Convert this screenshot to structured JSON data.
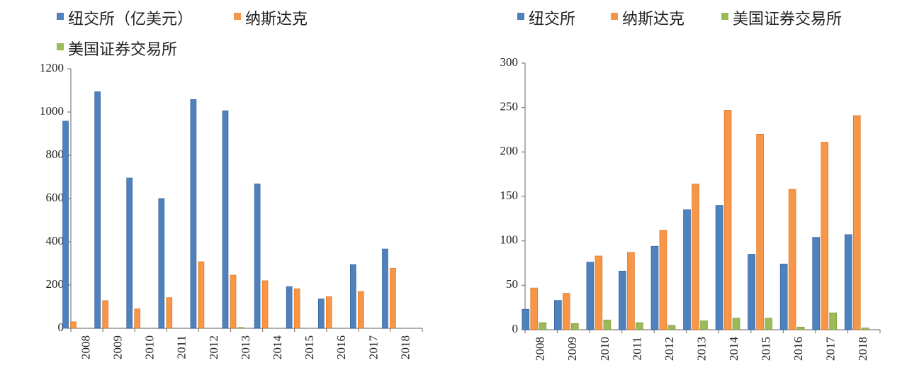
{
  "chart_data": [
    {
      "type": "bar",
      "categories": [
        "2008",
        "2009",
        "2010",
        "2011",
        "2012",
        "2013",
        "2014",
        "2015",
        "2016",
        "2017",
        "2018"
      ],
      "ylim": [
        0,
        1200
      ],
      "yticks": [
        0,
        200,
        400,
        600,
        800,
        1000,
        1200
      ],
      "grid": false,
      "legend_position": "top",
      "series": [
        {
          "name": "纽交所（亿美元）",
          "color": "#4f81bd",
          "values": [
            958,
            1094,
            695,
            600,
            1058,
            1006,
            668,
            193,
            136,
            295,
            367
          ]
        },
        {
          "name": "纳斯达克",
          "color": "#f79646",
          "values": [
            30,
            128,
            90,
            142,
            308,
            246,
            220,
            183,
            146,
            170,
            278
          ]
        },
        {
          "name": "美国证券交易所",
          "color": "#9bbb59",
          "values": [
            0,
            0,
            0,
            0,
            0,
            4,
            0,
            0,
            0,
            0,
            0
          ]
        }
      ]
    },
    {
      "type": "bar",
      "categories": [
        "2008",
        "2009",
        "2010",
        "2011",
        "2012",
        "2013",
        "2014",
        "2015",
        "2016",
        "2017",
        "2018"
      ],
      "ylim": [
        0,
        300
      ],
      "yticks": [
        0,
        50,
        100,
        150,
        200,
        250,
        300
      ],
      "grid": false,
      "legend_position": "top",
      "series": [
        {
          "name": "纽交所",
          "color": "#4f81bd",
          "values": [
            23,
            33,
            76,
            66,
            94,
            135,
            140,
            85,
            74,
            104,
            107
          ]
        },
        {
          "name": "纳斯达克",
          "color": "#f79646",
          "values": [
            47,
            41,
            83,
            87,
            112,
            164,
            247,
            220,
            158,
            211,
            241
          ]
        },
        {
          "name": "美国证券交易所",
          "color": "#9bbb59",
          "values": [
            8,
            7,
            11,
            8,
            5,
            10,
            13,
            13,
            3,
            19,
            2
          ]
        }
      ]
    }
  ]
}
